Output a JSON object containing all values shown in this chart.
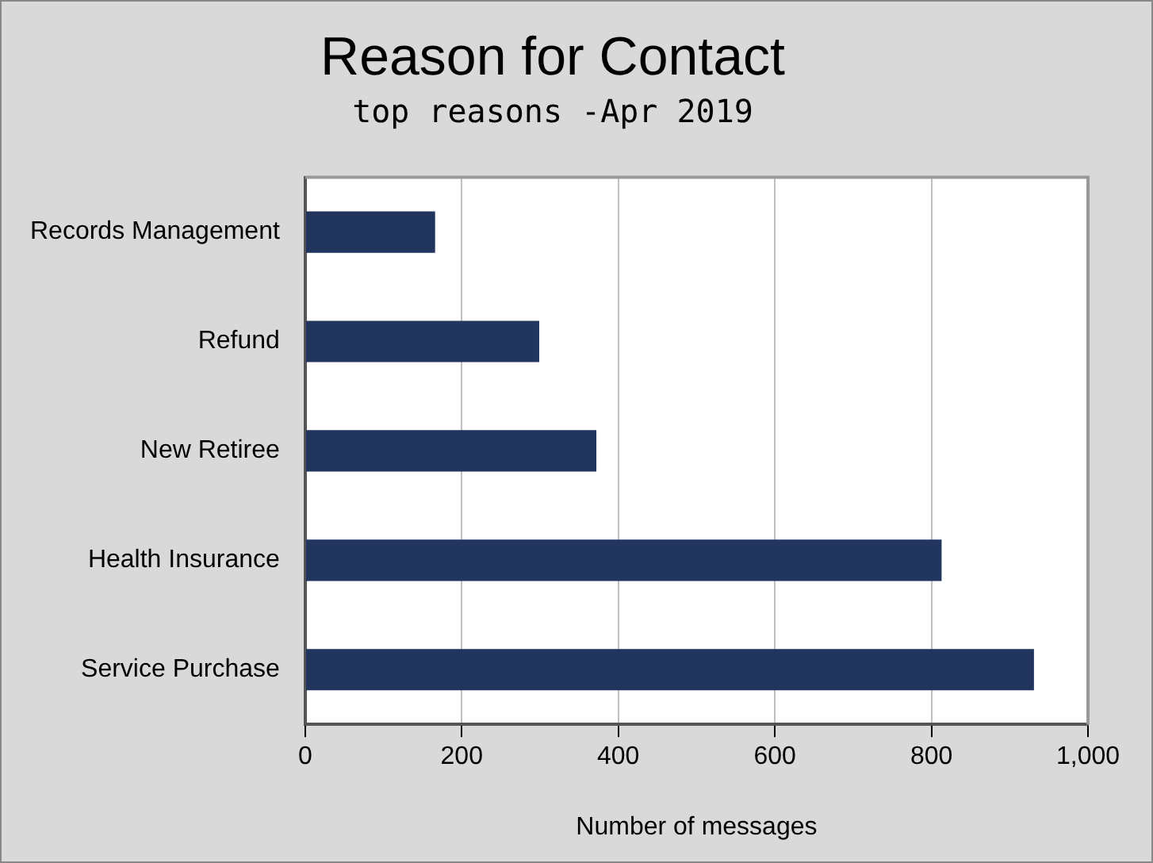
{
  "chart_data": {
    "type": "bar",
    "orientation": "horizontal",
    "title": "Reason for Contact",
    "subtitle": "top reasons -Apr 2019",
    "xlabel": "Number of messages",
    "categories": [
      "Records Management",
      "Refund",
      "New Retiree",
      "Health Insurance",
      "Service Purchase"
    ],
    "values": [
      166,
      299,
      372,
      813,
      931
    ],
    "color": "#22355e",
    "xlim": [
      0,
      1000
    ],
    "xticks": [
      0,
      200,
      400,
      600,
      800,
      {
        "value": 1000,
        "label": "1,000"
      }
    ],
    "grid": "x",
    "legend": false
  }
}
